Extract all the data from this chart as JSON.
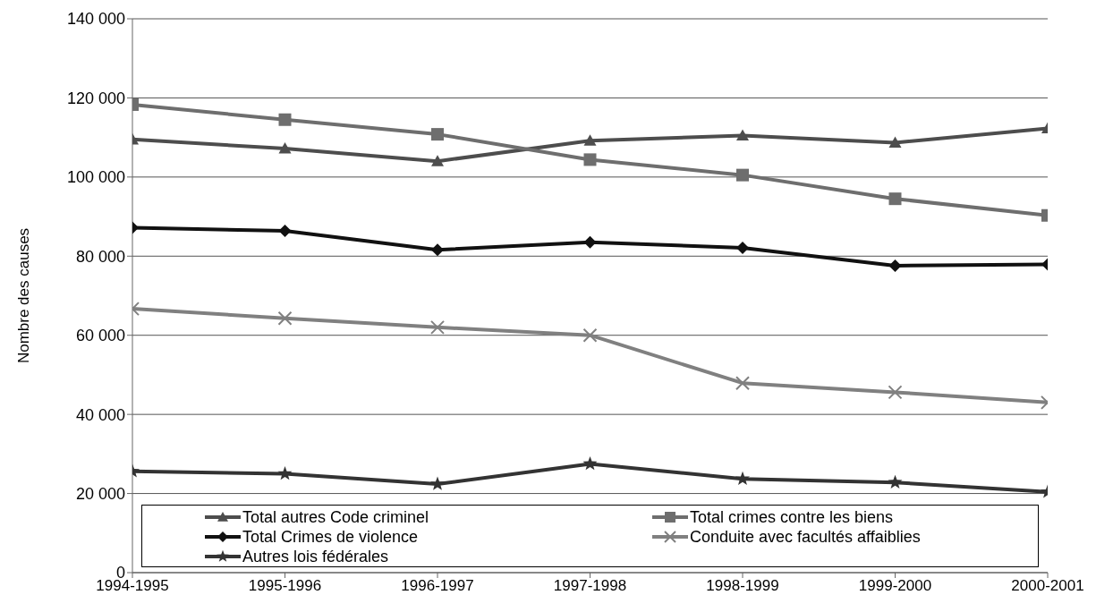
{
  "chart_data": {
    "type": "line",
    "ylabel": "Nombre des causes",
    "categories": [
      "1994-1995",
      "1995-1996",
      "1996-1997",
      "1997-1998",
      "1998-1999",
      "1999-2000",
      "2000-2001"
    ],
    "series": [
      {
        "name": "Total  autres Code criminel",
        "color": "#4d4d4d",
        "marker": "triangle",
        "values": [
          109500,
          107200,
          104000,
          109200,
          110500,
          108700,
          112300
        ]
      },
      {
        "name": "Total crimes contre les biens",
        "color": "#6e6e6e",
        "marker": "square",
        "values": [
          118300,
          114500,
          110800,
          104400,
          100500,
          94500,
          90300
        ]
      },
      {
        "name": "Total  Crimes de violence",
        "color": "#111111",
        "marker": "diamond",
        "values": [
          87200,
          86400,
          81600,
          83500,
          82100,
          77600,
          77900
        ]
      },
      {
        "name": "Conduite avec facultés affaiblies",
        "color": "#808080",
        "marker": "cross",
        "values": [
          66700,
          64300,
          62000,
          60000,
          47900,
          45600,
          43000
        ]
      },
      {
        "name": "Autres lois fédérales",
        "color": "#333333",
        "marker": "star",
        "values": [
          25600,
          25000,
          22400,
          27500,
          23700,
          22800,
          20400
        ]
      }
    ],
    "ylim": [
      0,
      140000
    ],
    "yticks": [
      0,
      {
        "value": 20000,
        "label": "20 000"
      },
      {
        "value": 40000,
        "label": "40 000"
      },
      {
        "value": 60000,
        "label": "60 000"
      },
      {
        "value": 80000,
        "label": "80 000"
      },
      {
        "value": 100000,
        "label": "100 000"
      },
      {
        "value": 120000,
        "label": "120 000"
      },
      {
        "value": 140000,
        "label": "140 000"
      }
    ],
    "grid": "y",
    "legend": "bottom",
    "line_style": "solid"
  }
}
